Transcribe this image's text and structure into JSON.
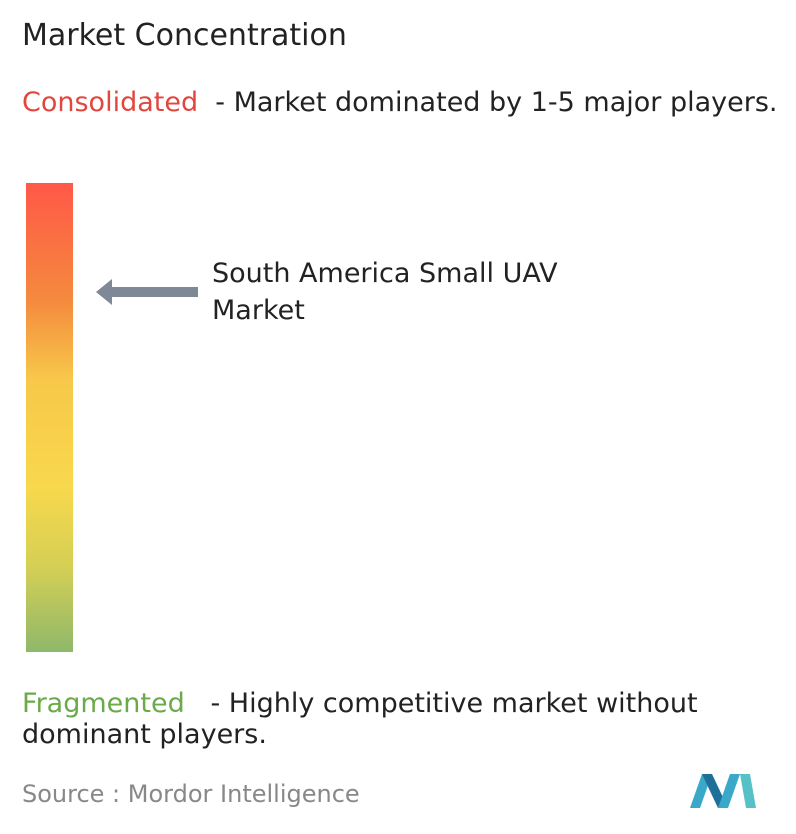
{
  "title": "Market Concentration",
  "consolidated": {
    "label": "Consolidated",
    "description": "- Market dominated by 1-5 major players."
  },
  "market": {
    "label": "South America Small UAV Market"
  },
  "fragmented": {
    "label": "Fragmented",
    "description": "- Highly competitive market without dominant players."
  },
  "source": "Source : Mordor Intelligence"
}
